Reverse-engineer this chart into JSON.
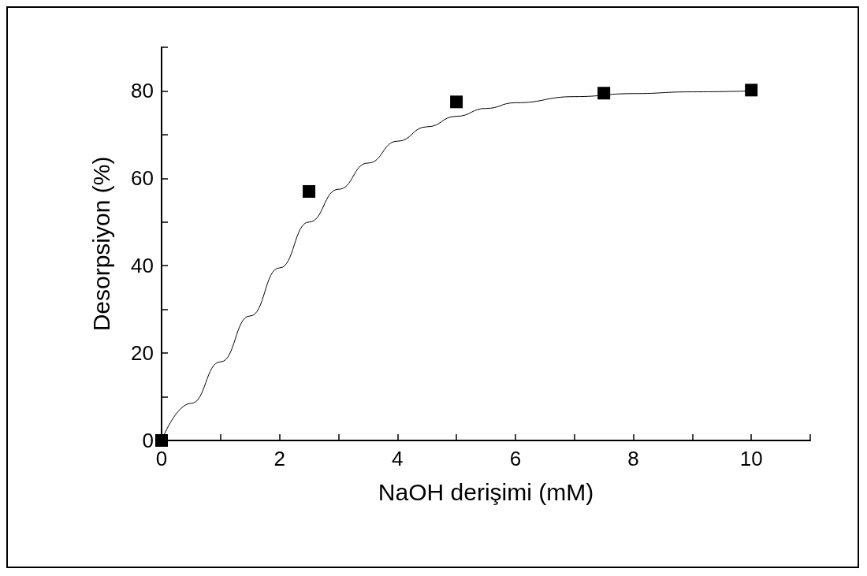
{
  "chart_data": {
    "type": "scatter",
    "xlabel": "NaOH derişimi (mM)",
    "ylabel": "Desorpsiyon (%)",
    "xlim": [
      0,
      11
    ],
    "ylim": [
      0,
      90
    ],
    "xticks": [
      0,
      {
        "value": 1,
        "label": null
      },
      2,
      {
        "value": 3,
        "label": null
      },
      4,
      {
        "value": 5,
        "label": null
      },
      6,
      {
        "value": 7,
        "label": null
      },
      8,
      {
        "value": 9,
        "label": null
      },
      10,
      {
        "value": 11,
        "label": null
      }
    ],
    "yticks": [
      0,
      {
        "value": 10,
        "label": null
      },
      20,
      {
        "value": 30,
        "label": null
      },
      40,
      {
        "value": 50,
        "label": null
      },
      60,
      {
        "value": 70,
        "label": null
      },
      80,
      {
        "value": 90,
        "label": null
      }
    ],
    "grid": false,
    "series": [
      {
        "marker": "square",
        "color": "#000000",
        "x": [
          0,
          2.5,
          5,
          7.5,
          10
        ],
        "values": [
          0,
          57,
          77.5,
          79.5,
          80.2
        ]
      },
      {
        "type": "line",
        "marker": "none",
        "line_style": "solid",
        "color": "#000000",
        "x": [
          0,
          0.5,
          1,
          1.5,
          2,
          2.5,
          3,
          3.5,
          4,
          4.5,
          5,
          5.5,
          6,
          7,
          8,
          9,
          10
        ],
        "values": [
          0,
          8.5,
          18,
          28.5,
          39.5,
          50,
          57.5,
          63.5,
          68.5,
          71.8,
          74.2,
          76,
          77.3,
          78.7,
          79.4,
          79.8,
          80
        ]
      }
    ]
  }
}
